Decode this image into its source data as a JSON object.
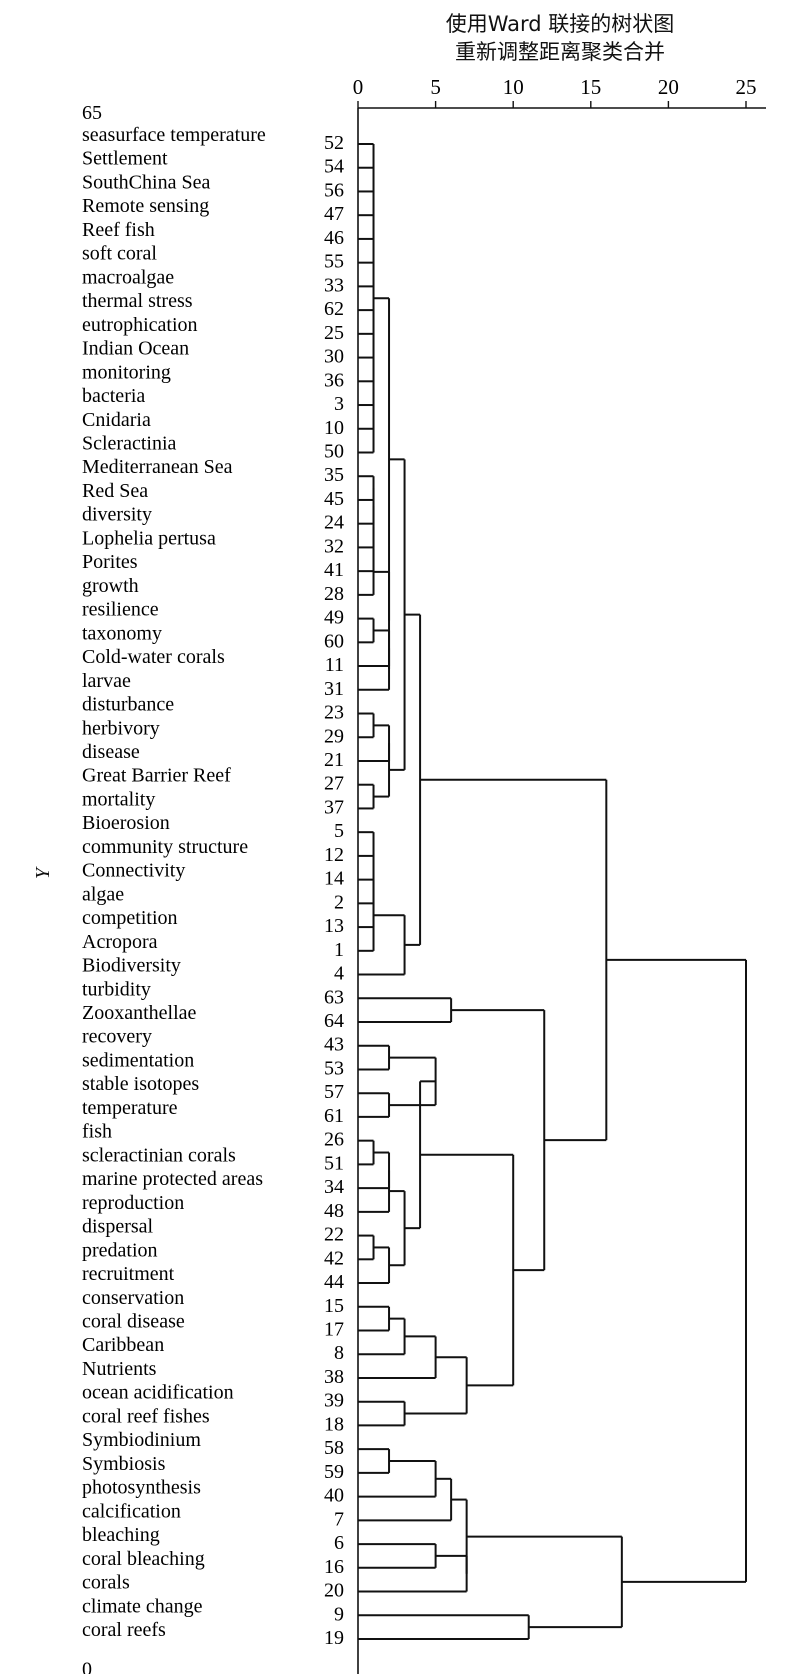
{
  "chart_data": {
    "type": "dendrogram",
    "title": "使用Ward 联接的树状图",
    "subtitle": "重新调整距离聚类合并",
    "ylabel": "Y",
    "xlim": [
      0,
      25
    ],
    "xticks": [
      0,
      5,
      10,
      15,
      20,
      25
    ],
    "top_marker": "65",
    "bottom_marker": "0",
    "leaves": [
      {
        "label": "seasurface temperature",
        "id": 52
      },
      {
        "label": "Settlement",
        "id": 54
      },
      {
        "label": "SouthChina Sea",
        "id": 56
      },
      {
        "label": "Remote sensing",
        "id": 47
      },
      {
        "label": "Reef fish",
        "id": 46
      },
      {
        "label": "soft coral",
        "id": 55
      },
      {
        "label": "macroalgae",
        "id": 33
      },
      {
        "label": "thermal stress",
        "id": 62
      },
      {
        "label": "eutrophication",
        "id": 25
      },
      {
        "label": "Indian Ocean",
        "id": 30
      },
      {
        "label": "monitoring",
        "id": 36
      },
      {
        "label": "bacteria",
        "id": 3
      },
      {
        "label": "Cnidaria",
        "id": 10
      },
      {
        "label": "Scleractinia",
        "id": 50
      },
      {
        "label": "Mediterranean Sea",
        "id": 35
      },
      {
        "label": "Red Sea",
        "id": 45
      },
      {
        "label": "diversity",
        "id": 24
      },
      {
        "label": "Lophelia pertusa",
        "id": 32
      },
      {
        "label": "Porites",
        "id": 41
      },
      {
        "label": "growth",
        "id": 28
      },
      {
        "label": "resilience",
        "id": 49
      },
      {
        "label": "taxonomy",
        "id": 60
      },
      {
        "label": "Cold-water corals",
        "id": 11
      },
      {
        "label": "larvae",
        "id": 31
      },
      {
        "label": "disturbance",
        "id": 23
      },
      {
        "label": "herbivory",
        "id": 29
      },
      {
        "label": "disease",
        "id": 21
      },
      {
        "label": "Great Barrier Reef",
        "id": 27
      },
      {
        "label": "mortality",
        "id": 37
      },
      {
        "label": "Bioerosion",
        "id": 5
      },
      {
        "label": "community structure",
        "id": 12
      },
      {
        "label": "Connectivity",
        "id": 14
      },
      {
        "label": "algae",
        "id": 2
      },
      {
        "label": "competition",
        "id": 13
      },
      {
        "label": "Acropora",
        "id": 1
      },
      {
        "label": "Biodiversity",
        "id": 4
      },
      {
        "label": "turbidity",
        "id": 63
      },
      {
        "label": "Zooxanthellae",
        "id": 64
      },
      {
        "label": "recovery",
        "id": 43
      },
      {
        "label": "sedimentation",
        "id": 53
      },
      {
        "label": "stable isotopes",
        "id": 57
      },
      {
        "label": "temperature",
        "id": 61
      },
      {
        "label": "fish",
        "id": 26
      },
      {
        "label": "scleractinian corals",
        "id": 51
      },
      {
        "label": "marine protected areas",
        "id": 34
      },
      {
        "label": "reproduction",
        "id": 48
      },
      {
        "label": "dispersal",
        "id": 22
      },
      {
        "label": "predation",
        "id": 42
      },
      {
        "label": "recruitment",
        "id": 44
      },
      {
        "label": "conservation",
        "id": 15
      },
      {
        "label": "coral disease",
        "id": 17
      },
      {
        "label": "Caribbean",
        "id": 8
      },
      {
        "label": "Nutrients",
        "id": 38
      },
      {
        "label": "ocean acidification",
        "id": 39
      },
      {
        "label": "coral reef fishes",
        "id": 18
      },
      {
        "label": "Symbiodinium",
        "id": 58
      },
      {
        "label": "Symbiosis",
        "id": 59
      },
      {
        "label": "photosynthesis",
        "id": 40
      },
      {
        "label": "calcification",
        "id": 7
      },
      {
        "label": "bleaching",
        "id": 6
      },
      {
        "label": "coral bleaching",
        "id": 16
      },
      {
        "label": "corals",
        "id": 20
      },
      {
        "label": "climate change",
        "id": 9
      },
      {
        "label": "coral reefs",
        "id": 19
      }
    ],
    "merges": [
      {
        "children": [
          "L0",
          "L1",
          "L2",
          "L3",
          "L4",
          "L5",
          "L6",
          "L7",
          "L8",
          "L9",
          "L10",
          "L11",
          "L12",
          "L13"
        ],
        "height": 1
      },
      {
        "children": [
          "L14",
          "L15"
        ],
        "height": 1
      },
      {
        "children": [
          "N1",
          "L16"
        ],
        "height": 1
      },
      {
        "children": [
          "N2",
          "L17"
        ],
        "height": 1
      },
      {
        "children": [
          "N3",
          "L18"
        ],
        "height": 1
      },
      {
        "children": [
          "N4",
          "L19"
        ],
        "height": 1
      },
      {
        "children": [
          "L20",
          "L21"
        ],
        "height": 1
      },
      {
        "children": [
          "N6",
          "L22"
        ],
        "height": 2
      },
      {
        "children": [
          "N7",
          "L23"
        ],
        "height": 2
      },
      {
        "children": [
          "N5",
          "N8"
        ],
        "height": 2
      },
      {
        "children": [
          "N0",
          "N9"
        ],
        "height": 2
      },
      {
        "children": [
          "L24",
          "L25"
        ],
        "height": 1
      },
      {
        "children": [
          "N11",
          "L26"
        ],
        "height": 2
      },
      {
        "children": [
          "L27",
          "L28"
        ],
        "height": 1
      },
      {
        "children": [
          "N12",
          "N13"
        ],
        "height": 2
      },
      {
        "children": [
          "N10",
          "N14"
        ],
        "height": 3
      },
      {
        "children": [
          "L29",
          "L30",
          "L31",
          "L32",
          "L33"
        ],
        "height": 1
      },
      {
        "children": [
          "N16",
          "L34"
        ],
        "height": 1
      },
      {
        "children": [
          "N17",
          "L35"
        ],
        "height": 3
      },
      {
        "children": [
          "N15",
          "N18"
        ],
        "height": 4
      },
      {
        "children": [
          "L36",
          "L37"
        ],
        "height": 6
      },
      {
        "children": [
          "L38",
          "L39"
        ],
        "height": 2
      },
      {
        "children": [
          "L40",
          "L41"
        ],
        "height": 2
      },
      {
        "children": [
          "N21",
          "N22"
        ],
        "height": 5
      },
      {
        "children": [
          "L42",
          "L43"
        ],
        "height": 1
      },
      {
        "children": [
          "N24",
          "L44"
        ],
        "height": 2
      },
      {
        "children": [
          "N25",
          "L45"
        ],
        "height": 2
      },
      {
        "children": [
          "L46",
          "L47"
        ],
        "height": 1
      },
      {
        "children": [
          "N27",
          "L48"
        ],
        "height": 2
      },
      {
        "children": [
          "N26",
          "N28"
        ],
        "height": 3
      },
      {
        "children": [
          "N23",
          "N29"
        ],
        "height": 4
      },
      {
        "children": [
          "L49",
          "L50"
        ],
        "height": 2
      },
      {
        "children": [
          "N31",
          "L51"
        ],
        "height": 3
      },
      {
        "children": [
          "N32",
          "L52"
        ],
        "height": 5
      },
      {
        "children": [
          "L53",
          "L54"
        ],
        "height": 3
      },
      {
        "children": [
          "N33",
          "N34"
        ],
        "height": 7
      },
      {
        "children": [
          "N30",
          "N35"
        ],
        "height": 10
      },
      {
        "children": [
          "N20",
          "N36"
        ],
        "height": 12
      },
      {
        "children": [
          "N19",
          "N37"
        ],
        "height": 16
      },
      {
        "children": [
          "L55",
          "L56"
        ],
        "height": 2
      },
      {
        "children": [
          "N39",
          "L57"
        ],
        "height": 5
      },
      {
        "children": [
          "N40",
          "L58"
        ],
        "height": 6
      },
      {
        "children": [
          "L59",
          "L60"
        ],
        "height": 5
      },
      {
        "children": [
          "N42",
          "L61"
        ],
        "height": 7
      },
      {
        "children": [
          "N41",
          "N43"
        ],
        "height": 7
      },
      {
        "children": [
          "L62",
          "L63"
        ],
        "height": 11
      },
      {
        "children": [
          "N44",
          "N45"
        ],
        "height": 17
      },
      {
        "children": [
          "N38",
          "N46"
        ],
        "height": 25
      }
    ]
  }
}
